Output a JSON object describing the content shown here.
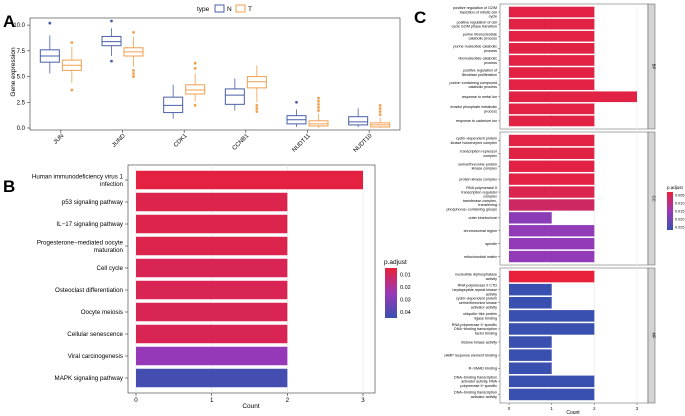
{
  "panels": {
    "a": "A",
    "b": "B",
    "c": "C"
  },
  "colors": {
    "normal": "#4a5fa8",
    "tumor": "#f0a050",
    "grad_low": "#e8203a",
    "grad_mid": "#9a38b8",
    "grad_high": "#3a50b0",
    "grid": "#e6e6e6",
    "strip": "#d4d4d4"
  },
  "chart_data": [
    {
      "id": "A",
      "type": "box",
      "title": "",
      "xlabel": "",
      "ylabel": "Gene expression",
      "ylim": [
        0,
        10.5
      ],
      "yticks": [
        "0.0",
        "2.5",
        "5.0",
        "7.5",
        "10.0"
      ],
      "legend": {
        "title": "type",
        "entries": [
          "N",
          "T"
        ],
        "placement": "top-center"
      },
      "categories": [
        "JUN",
        "JUND",
        "CDK1",
        "CCNB1",
        "NUDT11",
        "NUDT10"
      ],
      "series": [
        {
          "name": "N",
          "color": "#4a5fa8",
          "boxes": [
            {
              "min": 5.3,
              "q1": 6.4,
              "median": 7.0,
              "q3": 7.6,
              "max": 9.0,
              "outliers": [
                10.2
              ]
            },
            {
              "min": 7.0,
              "q1": 8.0,
              "median": 8.4,
              "q3": 8.9,
              "max": 9.7,
              "outliers": [
                10.4,
                6.5
              ]
            },
            {
              "min": 0.9,
              "q1": 1.5,
              "median": 2.2,
              "q3": 3.0,
              "max": 4.2,
              "outliers": []
            },
            {
              "min": 1.7,
              "q1": 2.3,
              "median": 3.2,
              "q3": 3.8,
              "max": 4.8,
              "outliers": []
            },
            {
              "min": 0.1,
              "q1": 0.4,
              "median": 0.8,
              "q3": 1.2,
              "max": 1.8,
              "outliers": [
                2.5
              ]
            },
            {
              "min": 0.1,
              "q1": 0.3,
              "median": 0.6,
              "q3": 1.1,
              "max": 1.9,
              "outliers": []
            }
          ]
        },
        {
          "name": "T",
          "color": "#f0a050",
          "boxes": [
            {
              "min": 4.4,
              "q1": 5.6,
              "median": 6.1,
              "q3": 6.6,
              "max": 7.9,
              "outliers": [
                8.3,
                3.7
              ]
            },
            {
              "min": 6.0,
              "q1": 7.0,
              "median": 7.4,
              "q3": 7.8,
              "max": 8.9,
              "outliers": [
                9.3,
                5.6,
                5.3,
                5.0
              ]
            },
            {
              "min": 2.6,
              "q1": 3.3,
              "median": 3.7,
              "q3": 4.2,
              "max": 5.3,
              "outliers": [
                6.3,
                5.8,
                2.2
              ]
            },
            {
              "min": 2.5,
              "q1": 3.9,
              "median": 4.5,
              "q3": 5.0,
              "max": 6.1,
              "outliers": [
                2.2,
                1.9,
                1.6
              ]
            },
            {
              "min": 0.0,
              "q1": 0.2,
              "median": 0.4,
              "q3": 0.7,
              "max": 1.4,
              "outliers": [
                1.7,
                2.0,
                2.3,
                2.6,
                2.9
              ]
            },
            {
              "min": 0.0,
              "q1": 0.1,
              "median": 0.3,
              "q3": 0.5,
              "max": 1.0,
              "outliers": [
                1.3,
                1.6,
                1.9,
                2.2
              ]
            }
          ]
        }
      ]
    },
    {
      "id": "B",
      "type": "bar",
      "orientation": "horizontal",
      "xlabel": "Count",
      "ylabel": "",
      "xlim": [
        0,
        3.15
      ],
      "xticks": [
        0,
        1,
        2,
        3
      ],
      "legend": {
        "title": "p.adjust",
        "labels": [
          "0.01",
          "0.02",
          "0.03",
          "0.04"
        ],
        "placement": "right"
      },
      "color_range": [
        0.005,
        0.045
      ],
      "categories": [
        "Human immunodeficiency virus 1\ninfection",
        "p53 signaling pathway",
        "IL−17 signaling pathway",
        "Progesterone−mediated oocyte\nmaturation",
        "Cell cycle",
        "Osteoclast differentiation",
        "Oocyte meiosis",
        "Cellular senescence",
        "Viral carcinogenesis",
        "MAPK signaling pathway"
      ],
      "values": [
        3,
        2,
        2,
        2,
        2,
        2,
        2,
        2,
        2,
        2
      ],
      "p_adjust": [
        0.006,
        0.008,
        0.008,
        0.008,
        0.009,
        0.009,
        0.009,
        0.009,
        0.026,
        0.043
      ]
    },
    {
      "id": "C",
      "type": "bar",
      "orientation": "horizontal",
      "xlabel": "Count",
      "ylabel": "",
      "xlim": [
        0,
        3.15
      ],
      "xticks": [
        0,
        1,
        2,
        3
      ],
      "legend": {
        "title": "p.adjust",
        "labels": [
          "0.005",
          "0.010",
          "0.015",
          "0.020",
          "0.025"
        ],
        "placement": "right"
      },
      "color_range": [
        0.003,
        0.027
      ],
      "facets": [
        {
          "strip": "BP",
          "categories": [
            "positive regulation of G2/M\ntransition of mitotic cell\ncycle",
            "positive regulation of cell\ncycle G2/M phase transition",
            "purine ribonucleotide\ncatabolic process",
            "purine nucleotide catabolic\nprocess",
            "ribonucleotide catabolic\nprocess",
            "positive regulation of\nfibroblast proliferation",
            "purine−containing compound\ncatabolic process",
            "response to metal ion",
            "inositol phosphate metabolic\nprocess",
            "response to cadmium ion"
          ],
          "values": [
            2,
            2,
            2,
            2,
            2,
            2,
            2,
            3,
            2,
            2
          ],
          "p_adjust": [
            0.004,
            0.004,
            0.004,
            0.004,
            0.004,
            0.004,
            0.004,
            0.004,
            0.004,
            0.004
          ]
        },
        {
          "strip": "CC",
          "categories": [
            "cyclin−dependent protein\nkinase holoenzyme complex",
            "transcription repressor\ncomplex",
            "serine/threonine protein\nkinase complex",
            "protein kinase complex",
            "RNA polymerase II\ntranscription regulator\ncomplex",
            "transferase complex,\ntransferring\nphosphorus−containing groups",
            "outer kinetochore",
            "chromosomal region",
            "spindle",
            "mitochondrial matrix"
          ],
          "values": [
            2,
            2,
            2,
            2,
            2,
            2,
            1,
            2,
            2,
            2
          ],
          "p_adjust": [
            0.004,
            0.004,
            0.004,
            0.004,
            0.005,
            0.007,
            0.017,
            0.016,
            0.016,
            0.016
          ]
        },
        {
          "strip": "MF",
          "categories": [
            "nucleotide diphosphatase\nactivity",
            "RNA polymerase II CTD\nheptapeptide repeat kinase\nactivity",
            "cyclin−dependent protein\nserine/threonine kinase\nactivator activity",
            "ubiquitin−like protein\nligase binding",
            "RNA polymerase II−specific\nDNA−binding transcription\nfactor binding",
            "histone kinase activity",
            "cAMP response element binding",
            "R−SMAD binding",
            "DNA−binding transcription\nactivator activity, RNA\npolymerase II−specific",
            "DNA−binding transcription\nactivator activity"
          ],
          "values": [
            2,
            1,
            1,
            2,
            2,
            1,
            1,
            1,
            2,
            2
          ],
          "p_adjust": [
            0.003,
            0.027,
            0.027,
            0.027,
            0.027,
            0.027,
            0.027,
            0.027,
            0.027,
            0.027
          ]
        }
      ]
    }
  ]
}
